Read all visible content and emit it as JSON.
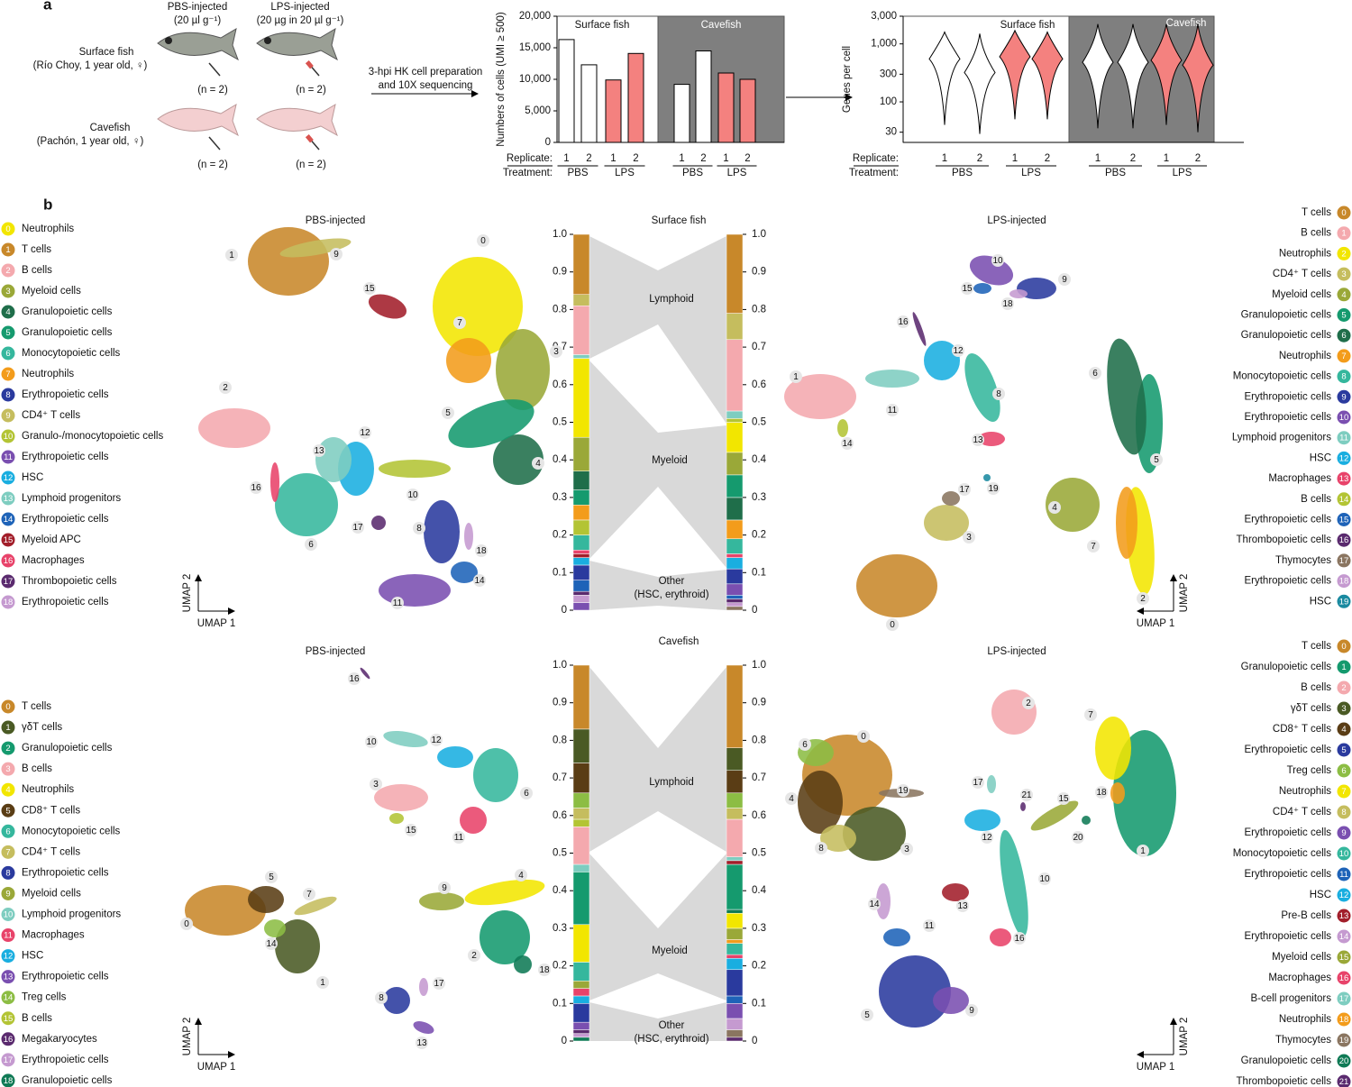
{
  "panel_labels": [
    "a",
    "b"
  ],
  "schematic": {
    "pbs_title": "PBS-injected",
    "pbs_dose": "(20 µl g⁻¹)",
    "lps_title": "LPS-injected",
    "lps_dose": "(20 µg in 20 µl g⁻¹)",
    "surface_name": "Surface fish",
    "surface_origin": "(Río Choy, 1 year old, ♀)",
    "cave_name": "Cavefish",
    "cave_origin": "(Pachón, 1 year old, ♀)",
    "n": "(n = 2)",
    "step": [
      "3-hpi HK cell preparation",
      "and 10X sequencing"
    ]
  },
  "chart_data": [
    {
      "type": "bar",
      "y_label": "Numbers of cells (UMI ≥ 500)",
      "groups": [
        "Surface fish",
        "Cavefish"
      ],
      "panel_colors": [
        "#ffffff",
        "#7f7f7f"
      ],
      "x_labels": [
        "Replicate:",
        "Treatment:"
      ],
      "replicates": [
        "1",
        "2"
      ],
      "series": [
        {
          "name": "PBS",
          "color": "#ffffff",
          "values": [
            16300,
            12300,
            9200,
            14500
          ]
        },
        {
          "name": "LPS",
          "color": "#f4817f",
          "values": [
            9900,
            14100,
            11000,
            10000
          ]
        }
      ],
      "ylim": [
        0,
        20000
      ],
      "yticks": [
        0,
        {
          "value": 5000,
          "label": "5,000"
        },
        {
          "value": 10000,
          "label": "10,000"
        },
        {
          "value": 15000,
          "label": "15,000"
        },
        {
          "value": 20000,
          "label": "20,000"
        }
      ]
    },
    {
      "type": "violin",
      "y_label": "Genes per cell",
      "log_scale": true,
      "groups": [
        "Surface fish",
        "Cavefish"
      ],
      "panel_colors": [
        "#ffffff",
        "#7f7f7f"
      ],
      "x_labels": [
        "Replicate:",
        "Treatment:"
      ],
      "replicates": [
        "1",
        "2"
      ],
      "series": [
        {
          "name": "PBS",
          "color": "#ffffff",
          "values": [
            550,
            320,
            480,
            480
          ],
          "low": [
            40,
            28,
            35,
            35
          ],
          "high": [
            1600,
            1500,
            2200,
            2200
          ]
        },
        {
          "name": "LPS",
          "color": "#f4817f",
          "values": [
            600,
            550,
            520,
            430
          ],
          "low": [
            50,
            50,
            40,
            30
          ],
          "high": [
            1700,
            1600,
            2200,
            2200
          ]
        }
      ],
      "ylim": [
        20,
        3000
      ],
      "yticks": [
        30,
        100,
        300,
        {
          "value": 1000,
          "label": "1,000"
        },
        {
          "value": 3000,
          "label": "3,000"
        }
      ]
    },
    {
      "type": "stacked-bar",
      "ylim": [
        0,
        1
      ],
      "yticks": [
        {
          "value": 1,
          "label": "1.0"
        },
        0.9,
        0.8,
        0.7,
        0.6,
        0.5,
        0.4,
        0.3,
        0.2,
        0.1,
        0
      ],
      "colors": [
        "#c8882a",
        "#c5bd5e",
        "#f4a9ae",
        "#7ecdc0",
        "#f2e600",
        "#9aa838",
        "#1f6e4a",
        "#159a6e",
        "#f39c1b",
        "#b3c434",
        "#35b79d",
        "#e8436a",
        "#a21e2a",
        "#19aee0",
        "#2a3a9e",
        "#1e63b8",
        "#5a2a6e",
        "#c59ad0",
        "#7a4fb0"
      ],
      "values": [
        0.16,
        0.03,
        0.13,
        0.01,
        0.21,
        0.09,
        0.05,
        0.04,
        0.04,
        0.04,
        0.04,
        0.01,
        0.01,
        0.02,
        0.04,
        0.03,
        0.01,
        0.02,
        0.02
      ]
    },
    {
      "type": "stacked-bar",
      "ylim": [
        0,
        1
      ],
      "yticks": [
        {
          "value": 1,
          "label": "1.0"
        },
        0.9,
        0.8,
        0.7,
        0.6,
        0.5,
        0.4,
        0.3,
        0.2,
        0.1,
        0
      ],
      "colors": [
        "#c8882a",
        "#c5bd5e",
        "#f4a9ae",
        "#7ecdc0",
        "#b3c434",
        "#f2e600",
        "#9aa838",
        "#159a6e",
        "#1f6e4a",
        "#f39c1b",
        "#35b79d",
        "#e8436a",
        "#19aee0",
        "#2a3a9e",
        "#7a4fb0",
        "#1e63b8",
        "#5a2a6e",
        "#c59ad0",
        "#8a7560"
      ],
      "values": [
        0.21,
        0.07,
        0.19,
        0.02,
        0.01,
        0.08,
        0.06,
        0.06,
        0.06,
        0.05,
        0.04,
        0.01,
        0.03,
        0.04,
        0.03,
        0.01,
        0.01,
        0.01,
        0.01
      ]
    },
    {
      "type": "stacked-bar",
      "ylim": [
        0,
        1
      ],
      "yticks": [
        {
          "value": 1,
          "label": "1.0"
        },
        0.9,
        0.8,
        0.7,
        0.6,
        0.5,
        0.4,
        0.3,
        0.2,
        0.1,
        0
      ],
      "colors": [
        "#c8882a",
        "#4a5a24",
        "#5a3d15",
        "#8cbd44",
        "#c5bd5e",
        "#b3c434",
        "#f4a9ae",
        "#7ecdc0",
        "#159a6e",
        "#f2e600",
        "#35b79d",
        "#9aa838",
        "#e8436a",
        "#19aee0",
        "#2a3a9e",
        "#7a4fb0",
        "#5a2a6e",
        "#c59ad0",
        "#0f7a55"
      ],
      "values": [
        0.17,
        0.09,
        0.08,
        0.04,
        0.03,
        0.02,
        0.1,
        0.02,
        0.14,
        0.1,
        0.05,
        0.02,
        0.02,
        0.02,
        0.05,
        0.02,
        0.01,
        0.01,
        0.01
      ]
    },
    {
      "type": "stacked-bar",
      "ylim": [
        0,
        1
      ],
      "yticks": [
        {
          "value": 1,
          "label": "1.0"
        },
        0.9,
        0.8,
        0.7,
        0.6,
        0.5,
        0.4,
        0.3,
        0.2,
        0.1,
        0
      ],
      "colors": [
        "#c8882a",
        "#4a5a24",
        "#5a3d15",
        "#8cbd44",
        "#c5bd5e",
        "#f4a9ae",
        "#7ecdc0",
        "#a21e2a",
        "#159a6e",
        "#0f7a55",
        "#f2e600",
        "#9aa838",
        "#f39c1b",
        "#35b79d",
        "#e8436a",
        "#19aee0",
        "#2a3a9e",
        "#1e63b8",
        "#7a4fb0",
        "#c59ad0",
        "#8a7560",
        "#5a2a6e"
      ],
      "values": [
        0.22,
        0.06,
        0.06,
        0.04,
        0.03,
        0.1,
        0.01,
        0.01,
        0.12,
        0.01,
        0.04,
        0.03,
        0.01,
        0.03,
        0.01,
        0.03,
        0.07,
        0.02,
        0.04,
        0.03,
        0.02,
        0.01
      ]
    }
  ],
  "section_titles": [
    "Surface fish",
    "Cavefish"
  ],
  "compartments": [
    "Lymphoid",
    "Myeloid",
    "Other",
    "(HSC, erythroid)"
  ],
  "umap_axes": [
    "UMAP 1",
    "UMAP 2"
  ],
  "umaps": [
    {
      "title": "PBS-injected",
      "clusters": [
        {
          "id": "0",
          "label": "Neutrophils",
          "color": "#f2e600"
        },
        {
          "id": "1",
          "label": "T cells",
          "color": "#c8882a"
        },
        {
          "id": "2",
          "label": "B cells",
          "color": "#f4a9ae"
        },
        {
          "id": "3",
          "label": "Myeloid cells",
          "color": "#9aa838"
        },
        {
          "id": "4",
          "label": "Granulopoietic cells",
          "color": "#1f6e4a"
        },
        {
          "id": "5",
          "label": "Granulopoietic cells",
          "color": "#159a6e"
        },
        {
          "id": "6",
          "label": "Monocytopoietic cells",
          "color": "#35b79d"
        },
        {
          "id": "7",
          "label": "Neutrophils",
          "color": "#f39c1b"
        },
        {
          "id": "8",
          "label": "Erythropoietic cells",
          "color": "#2a3a9e"
        },
        {
          "id": "9",
          "label": "CD4⁺ T cells",
          "color": "#c5bd5e"
        },
        {
          "id": "10",
          "label": "Granulo-/monocytopoietic cells",
          "color": "#b3c434"
        },
        {
          "id": "11",
          "label": "Erythropoietic cells",
          "color": "#7a4fb0"
        },
        {
          "id": "12",
          "label": "HSC",
          "color": "#19aee0"
        },
        {
          "id": "13",
          "label": "Lymphoid progenitors",
          "color": "#7ecdc0"
        },
        {
          "id": "14",
          "label": "Erythropoietic cells",
          "color": "#1e63b8"
        },
        {
          "id": "15",
          "label": "Myeloid APC",
          "color": "#a21e2a"
        },
        {
          "id": "16",
          "label": "Macrophages",
          "color": "#e8436a"
        },
        {
          "id": "17",
          "label": "Thrombopoietic cells",
          "color": "#5a2a6e"
        },
        {
          "id": "18",
          "label": "Erythropoietic cells",
          "color": "#c59ad0"
        }
      ]
    },
    {
      "title": "LPS-injected",
      "clusters": [
        {
          "id": "0",
          "label": "T cells",
          "color": "#c8882a"
        },
        {
          "id": "1",
          "label": "B cells",
          "color": "#f4a9ae"
        },
        {
          "id": "2",
          "label": "Neutrophils",
          "color": "#f2e600"
        },
        {
          "id": "3",
          "label": "CD4⁺ T cells",
          "color": "#c5bd5e"
        },
        {
          "id": "4",
          "label": "Myeloid cells",
          "color": "#9aa838"
        },
        {
          "id": "5",
          "label": "Granulopoietic cells",
          "color": "#159a6e"
        },
        {
          "id": "6",
          "label": "Granulopoietic cells",
          "color": "#1f6e4a"
        },
        {
          "id": "7",
          "label": "Neutrophils",
          "color": "#f39c1b"
        },
        {
          "id": "8",
          "label": "Monocytopoietic cells",
          "color": "#35b79d"
        },
        {
          "id": "9",
          "label": "Erythropoietic cells",
          "color": "#2a3a9e"
        },
        {
          "id": "10",
          "label": "Erythropoietic cells",
          "color": "#7a4fb0"
        },
        {
          "id": "11",
          "label": "Lymphoid progenitors",
          "color": "#7ecdc0"
        },
        {
          "id": "12",
          "label": "HSC",
          "color": "#19aee0"
        },
        {
          "id": "13",
          "label": "Macrophages",
          "color": "#e8436a"
        },
        {
          "id": "14",
          "label": "B cells",
          "color": "#b3c434"
        },
        {
          "id": "15",
          "label": "Erythropoietic cells",
          "color": "#1e63b8"
        },
        {
          "id": "16",
          "label": "Thrombopoietic cells",
          "color": "#5a2a6e"
        },
        {
          "id": "17",
          "label": "Thymocytes",
          "color": "#8a7560"
        },
        {
          "id": "18",
          "label": "Erythropoietic cells",
          "color": "#c59ad0"
        },
        {
          "id": "19",
          "label": "HSC",
          "color": "#1a8aa0"
        }
      ]
    },
    {
      "title": "PBS-injected",
      "clusters": [
        {
          "id": "0",
          "label": "T cells",
          "color": "#c8882a"
        },
        {
          "id": "1",
          "label": "γδT cells",
          "color": "#4a5a24"
        },
        {
          "id": "2",
          "label": "Granulopoietic cells",
          "color": "#159a6e"
        },
        {
          "id": "3",
          "label": "B cells",
          "color": "#f4a9ae"
        },
        {
          "id": "4",
          "label": "Neutrophils",
          "color": "#f2e600"
        },
        {
          "id": "5",
          "label": "CD8⁺ T cells",
          "color": "#5a3d15"
        },
        {
          "id": "6",
          "label": "Monocytopoietic cells",
          "color": "#35b79d"
        },
        {
          "id": "7",
          "label": "CD4⁺ T cells",
          "color": "#c5bd5e"
        },
        {
          "id": "8",
          "label": "Erythropoietic cells",
          "color": "#2a3a9e"
        },
        {
          "id": "9",
          "label": "Myeloid cells",
          "color": "#9aa838"
        },
        {
          "id": "10",
          "label": "Lymphoid progenitors",
          "color": "#7ecdc0"
        },
        {
          "id": "11",
          "label": "Macrophages",
          "color": "#e8436a"
        },
        {
          "id": "12",
          "label": "HSC",
          "color": "#19aee0"
        },
        {
          "id": "13",
          "label": "Erythropoietic cells",
          "color": "#7a4fb0"
        },
        {
          "id": "14",
          "label": "Treg cells",
          "color": "#8cbd44"
        },
        {
          "id": "15",
          "label": "B cells",
          "color": "#b3c434"
        },
        {
          "id": "16",
          "label": "Megakaryocytes",
          "color": "#5a2a6e"
        },
        {
          "id": "17",
          "label": "Erythropoietic cells",
          "color": "#c59ad0"
        },
        {
          "id": "18",
          "label": "Granulopoietic cells",
          "color": "#0f7a55"
        }
      ]
    },
    {
      "title": "LPS-injected",
      "clusters": [
        {
          "id": "0",
          "label": "T cells",
          "color": "#c8882a"
        },
        {
          "id": "1",
          "label": "Granulopoietic cells",
          "color": "#159a6e"
        },
        {
          "id": "2",
          "label": "B cells",
          "color": "#f4a9ae"
        },
        {
          "id": "3",
          "label": "γδT cells",
          "color": "#4a5a24"
        },
        {
          "id": "4",
          "label": "CD8⁺ T cells",
          "color": "#5a3d15"
        },
        {
          "id": "5",
          "label": "Erythropoietic cells",
          "color": "#2a3a9e"
        },
        {
          "id": "6",
          "label": "Treg cells",
          "color": "#8cbd44"
        },
        {
          "id": "7",
          "label": "Neutrophils",
          "color": "#f2e600"
        },
        {
          "id": "8",
          "label": "CD4⁺ T cells",
          "color": "#c5bd5e"
        },
        {
          "id": "9",
          "label": "Erythropoietic cells",
          "color": "#7a4fb0"
        },
        {
          "id": "10",
          "label": "Monocytopoietic cells",
          "color": "#35b79d"
        },
        {
          "id": "11",
          "label": "Erythropoietic cells",
          "color": "#1e63b8"
        },
        {
          "id": "12",
          "label": "HSC",
          "color": "#19aee0"
        },
        {
          "id": "13",
          "label": "Pre-B cells",
          "color": "#a21e2a"
        },
        {
          "id": "14",
          "label": "Erythropoietic cells",
          "color": "#c59ad0"
        },
        {
          "id": "15",
          "label": "Myeloid cells",
          "color": "#9aa838"
        },
        {
          "id": "16",
          "label": "Macrophages",
          "color": "#e8436a"
        },
        {
          "id": "17",
          "label": "B-cell progenitors",
          "color": "#7ecdc0"
        },
        {
          "id": "18",
          "label": "Neutrophils",
          "color": "#f39c1b"
        },
        {
          "id": "19",
          "label": "Thymocytes",
          "color": "#8a7560"
        },
        {
          "id": "20",
          "label": "Granulopoietic cells",
          "color": "#0f7a55"
        },
        {
          "id": "21",
          "label": "Thrombopoietic cells",
          "color": "#5a2a6e"
        }
      ]
    }
  ]
}
